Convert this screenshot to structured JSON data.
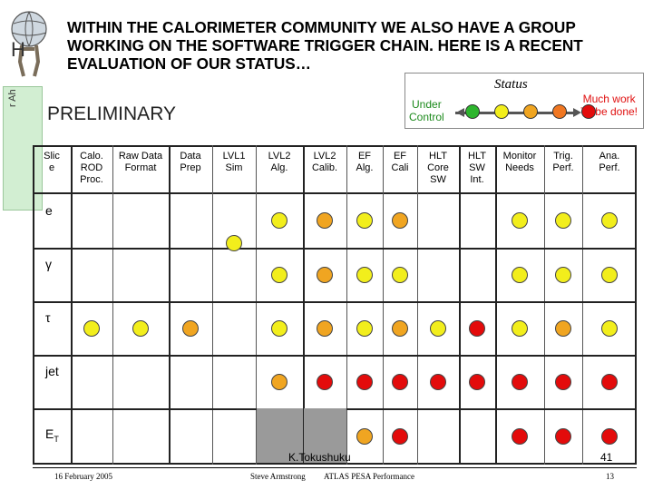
{
  "slide": {
    "bg_letter": "H",
    "side_text": "r Ah",
    "headline_lines": [
      "WITHIN THE CALORIMETER COMMUNITY WE ALSO HAVE A GROUP",
      "WORKING ON THE SOFTWARE TRIGGER CHAIN.  HERE IS A RECENT",
      "EVALUATION OF OUR STATUS…"
    ],
    "preliminary": "PRELIMINARY"
  },
  "legend": {
    "title": "Status",
    "under_control": [
      "Under",
      "Control"
    ],
    "much_work": [
      "Much work",
      "To be done!"
    ],
    "colors": [
      "#2db52d",
      "#f2ee1c",
      "#f0a521",
      "#f07722",
      "#e30b0b"
    ]
  },
  "columns": [
    [
      "Slic",
      "e"
    ],
    [
      "Calo.",
      "ROD",
      "Proc."
    ],
    [
      "Raw Data",
      "Format"
    ],
    [
      "Data",
      "Prep"
    ],
    [
      "LVL1",
      "Sim"
    ],
    [
      "LVL2",
      "Alg."
    ],
    [
      "LVL2",
      "Calib."
    ],
    [
      "EF",
      "Alg."
    ],
    [
      "EF",
      "Cali"
    ],
    [
      "HLT",
      "Core",
      "SW"
    ],
    [
      "HLT",
      "SW",
      "Int."
    ],
    [
      "Monitor",
      "Needs"
    ],
    [
      "Trig.",
      "Perf."
    ],
    [
      "Ana.",
      "Perf."
    ]
  ],
  "rows": [
    {
      "label": "e",
      "cells": [
        null,
        null,
        null,
        "Y",
        "Y",
        "O",
        "Y",
        "O",
        null,
        null,
        "Y",
        "Y",
        "Y"
      ]
    },
    {
      "label": "γ",
      "cells": [
        null,
        null,
        null,
        null,
        "Y",
        "O",
        "Y",
        "Y",
        null,
        null,
        "Y",
        "Y",
        "Y"
      ]
    },
    {
      "label": "τ",
      "cells": [
        "Y",
        "Y",
        "O",
        null,
        "Y",
        "O",
        "Y",
        "O",
        "Y",
        "R",
        "Y",
        "O",
        "Y"
      ]
    },
    {
      "label": "jet",
      "cells": [
        null,
        null,
        null,
        null,
        "O",
        "R",
        "R",
        "R",
        "R",
        "R",
        "R",
        "R",
        "R"
      ]
    },
    {
      "label": "E",
      "label_sub": "T",
      "cells": [
        null,
        null,
        null,
        null,
        "G",
        "G",
        "O",
        "R",
        null,
        null,
        "R",
        "R",
        "R"
      ]
    }
  ],
  "colors": {
    "Y": "#f2ee1c",
    "O": "#f0a521",
    "R": "#e30b0b"
  },
  "footer": {
    "date": "16 February 2005",
    "author": "Steve Armstrong",
    "talk": "ATLAS PESA Performance",
    "page_small": "13",
    "overlay_name": "K.Tokushuku",
    "overlay_page": "41"
  }
}
